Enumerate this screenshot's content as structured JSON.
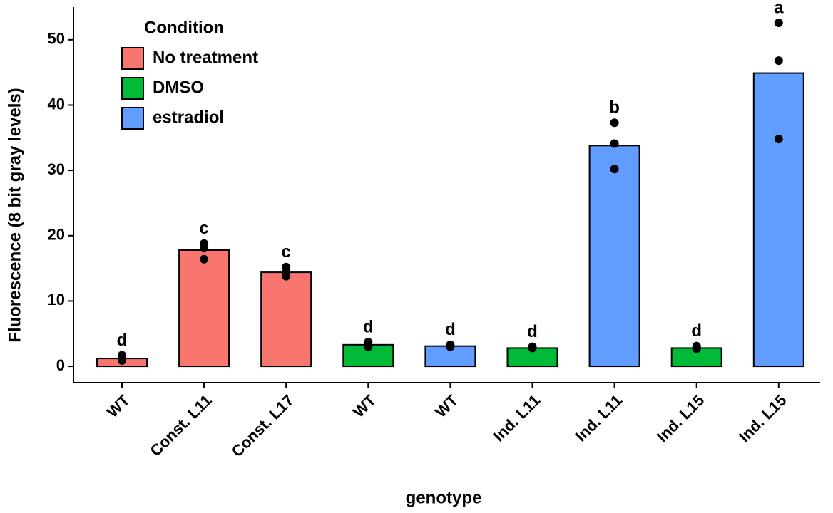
{
  "chart_data": {
    "type": "bar",
    "x_label": "genotype",
    "y_label": "Fluorescence (8 bit gray levels)",
    "legend_title": "Condition",
    "categories": [
      "WT",
      "Const. L11",
      "Const. L17",
      "WT",
      "WT",
      "Ind. L11",
      "Ind. L11",
      "Ind. L15",
      "Ind. L15"
    ],
    "series": [
      {
        "name": "No treatment",
        "color": "#f8766d",
        "values": [
          1.2,
          17.8,
          14.4,
          null,
          null,
          null,
          null,
          null,
          null
        ]
      },
      {
        "name": "DMSO",
        "color": "#00ba38",
        "values": [
          null,
          null,
          null,
          3.3,
          null,
          2.8,
          null,
          2.8,
          null
        ]
      },
      {
        "name": "estradiol",
        "color": "#619cff",
        "values": [
          null,
          null,
          null,
          null,
          3.1,
          null,
          33.8,
          null,
          44.9
        ]
      }
    ],
    "points": [
      [
        1.7,
        1.1,
        0.9
      ],
      [
        18.8,
        18.2,
        16.4
      ],
      [
        15.2,
        14.4,
        13.8
      ],
      [
        3.7,
        3.2,
        3.0
      ],
      [
        3.3,
        3.1,
        3.0
      ],
      [
        3.0,
        2.9,
        2.8
      ],
      [
        37.3,
        34.1,
        30.2
      ],
      [
        3.1,
        2.9,
        2.7
      ],
      [
        52.6,
        46.8,
        34.8
      ]
    ],
    "annotations": [
      "d",
      "c",
      "c",
      "d",
      "d",
      "d",
      "b",
      "d",
      "a"
    ],
    "ylim": [
      -2.5,
      55
    ],
    "yticks": [
      0,
      10,
      20,
      30,
      40,
      50
    ]
  }
}
